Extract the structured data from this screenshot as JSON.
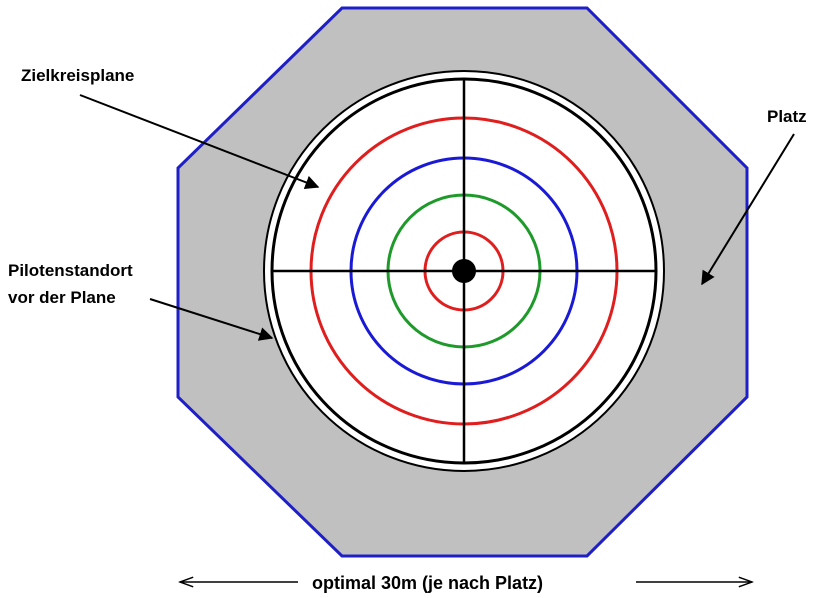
{
  "labels": {
    "target_tarp": "Zielkreisplane",
    "field": "Platz",
    "pilot_position_line1": "Pilotenstandort",
    "pilot_position_line2": "vor der Plane",
    "dimension": "optimal 30m (je nach Platz)"
  },
  "colors": {
    "field_fill": "#c0c0c0",
    "field_border": "#1f1fc8",
    "ring_red": "#e01e1e",
    "ring_blue": "#1a1ad6",
    "ring_green": "#1e9a2a",
    "crosshair": "#000000",
    "tarp_fill": "#ffffff"
  },
  "target_rings": [
    {
      "color": "red",
      "order": 1
    },
    {
      "color": "blue",
      "order": 2
    },
    {
      "color": "green",
      "order": 3
    },
    {
      "color": "red",
      "order": 4
    }
  ]
}
